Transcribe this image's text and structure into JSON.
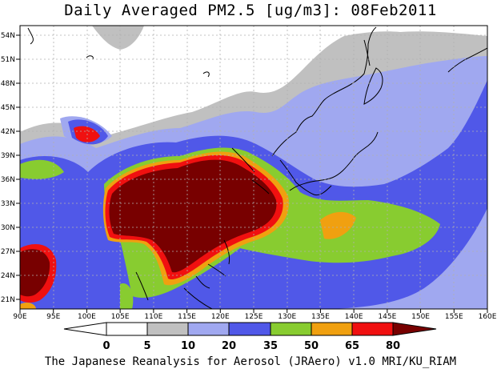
{
  "title": "Daily Averaged PM2.5 [ug/m3]: 08Feb2011",
  "footer": "The Japanese Reanalysis for Aerosol (JRAero) v1.0 MRI/KU_RIAM",
  "axes": {
    "lon_ticks": [
      "90E",
      "95E",
      "100E",
      "105E",
      "110E",
      "115E",
      "120E",
      "125E",
      "130E",
      "135E",
      "140E",
      "145E",
      "150E",
      "155E",
      "160E"
    ],
    "lat_ticks": [
      "21N",
      "24N",
      "27N",
      "30N",
      "33N",
      "36N",
      "39N",
      "42N",
      "45N",
      "48N",
      "51N",
      "54N"
    ]
  },
  "colorbar": {
    "ticks": [
      "0",
      "5",
      "10",
      "20",
      "35",
      "50",
      "65",
      "80"
    ],
    "colors": [
      "#ffffff",
      "#c0c0c0",
      "#a0a8f0",
      "#5058e8",
      "#88cc30",
      "#f0a010",
      "#f01010",
      "#780000"
    ]
  },
  "colors": {
    "frame": "#000000",
    "coast": "#000000",
    "grid": "#b0b0b0"
  }
}
